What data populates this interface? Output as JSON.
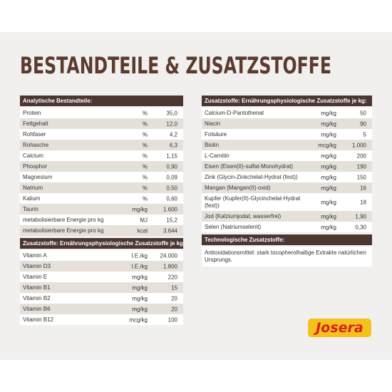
{
  "title": "BESTANDTEILE & ZUSATZSTOFFE",
  "left": [
    {
      "header": "Analytische Bestandteile:",
      "rows": [
        [
          "Protein",
          "%",
          "35,0"
        ],
        [
          "Fettgehalt",
          "%",
          "12,0"
        ],
        [
          "Rohfaser",
          "%",
          "4,2"
        ],
        [
          "Rohasche",
          "%",
          "6,3"
        ],
        [
          "Calcium",
          "%",
          "1,15"
        ],
        [
          "Phosphor",
          "%",
          "0,90"
        ],
        [
          "Magnesium",
          "%",
          "0,09"
        ],
        [
          "Natrium",
          "%",
          "0,50"
        ],
        [
          "Kalium",
          "%",
          "0,60"
        ],
        [
          "Taurin",
          "mg/kg",
          "1.600"
        ],
        [
          "metabolisierbare Energie pro kg",
          "MJ",
          "15,2"
        ],
        [
          "metabolisierbare Energie pro kg",
          "kcal",
          "3.644"
        ]
      ]
    },
    {
      "header": "Zusatzstoffe: Ernährungsphysiologische Zusatzstoffe je kg:",
      "rows": [
        [
          "Vitamin A",
          "I.E./kg",
          "24.000"
        ],
        [
          "Vitamin D3",
          "I.E./kg",
          "1.800"
        ],
        [
          "Vitamin E",
          "mg/kg",
          "220"
        ],
        [
          "Vitamin B1",
          "mg/kg",
          "15"
        ],
        [
          "Vitamin B2",
          "mg/kg",
          "20"
        ],
        [
          "Vitamin B6",
          "mg/kg",
          "20"
        ],
        [
          "Vitamin B12",
          "mcg/kg",
          "100"
        ]
      ]
    }
  ],
  "right": [
    {
      "header": "Zusatzstoffe: Ernährungsphysiologische Zusatzstoffe je kg:",
      "rows": [
        [
          "Calcium-D-Pantothenat",
          "mg/kg",
          "50"
        ],
        [
          "Niacin",
          "mg/kg",
          "90"
        ],
        [
          "Folsäure",
          "mg/kg",
          "5"
        ],
        [
          "Biotin",
          "mcg/kg",
          "1.000"
        ],
        [
          "L-Carnitin",
          "mg/kg",
          "200"
        ],
        [
          "Eisen (Eisen(II)-sulfat-Monohydrat)",
          "mg/kg",
          "190"
        ],
        [
          "Zink (Glycin-Zinkchelat-Hydrat (fest))",
          "mg/kg",
          "150"
        ],
        [
          "Mangan (Mangan(II)-oxid)",
          "mg/kg",
          "16"
        ],
        [
          "Kupfer (Kupfer(II)-Glycinchelat-Hydrat (fest))",
          "mg/kg",
          "18"
        ],
        [
          "Jod (Kalziumjodat, wasserfrei)",
          "mg/kg",
          "1,90"
        ],
        [
          "Selen (Natriumselenit)",
          "mg/kg",
          "0,30"
        ]
      ]
    },
    {
      "header": "Technologische Zusatzstoffe:",
      "text": "Antioxidationsmittel: stark tocopherolhaltige Extrakte natürlichen Ursprungs."
    }
  ],
  "logo": "Josera"
}
